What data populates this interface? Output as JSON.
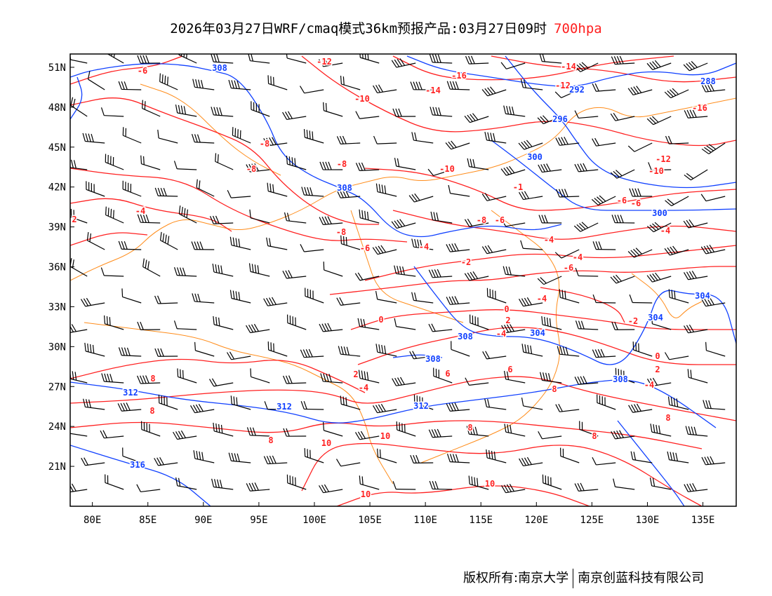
{
  "title": {
    "text": "2026年03月27日WRF/cmaq模式36km预报产品:03月27日09时",
    "level": "700hpa"
  },
  "footer": {
    "owner": "版权所有:南京大学",
    "company": "南京创蓝科技有限公司"
  },
  "colors": {
    "temperature": "#ff2020",
    "height": "#1040ff",
    "border": "#ff8c1a",
    "wind": "#000000"
  },
  "axes": {
    "lat_ticks": [
      "51N",
      "48N",
      "45N",
      "42N",
      "39N",
      "36N",
      "33N",
      "30N",
      "27N",
      "24N",
      "21N"
    ],
    "lon_ticks": [
      "80E",
      "85E",
      "90E",
      "95E",
      "100E",
      "105E",
      "110E",
      "115E",
      "120E",
      "125E",
      "130E",
      "135E"
    ],
    "lon_range": [
      78,
      138
    ],
    "lat_range": [
      18,
      52
    ]
  },
  "contour_labels": {
    "temperature": [
      "-6",
      "-12",
      "-16",
      "-14",
      "-12",
      "-14",
      "-10",
      "-16",
      "-8",
      "-8",
      "-8",
      "-10",
      "-12",
      "-10",
      "-4",
      "2",
      "-8",
      "-6",
      "-4",
      "-8",
      "-6",
      "-1",
      "-6",
      "-6",
      "-4",
      "-4",
      "-4",
      "-6",
      "-2",
      "-4",
      "0",
      "2",
      "-4",
      "-2",
      "0",
      "2",
      "-4",
      "0",
      "2",
      "-4",
      "6",
      "6",
      "8",
      "8",
      "8",
      "8",
      "10",
      "10",
      "8",
      "8",
      "8",
      "10",
      "10"
    ],
    "height": [
      "308",
      "292",
      "296",
      "288",
      "300",
      "308",
      "300",
      "304",
      "304",
      "308",
      "304",
      "308",
      "308",
      "312",
      "312",
      "312",
      "316"
    ]
  }
}
